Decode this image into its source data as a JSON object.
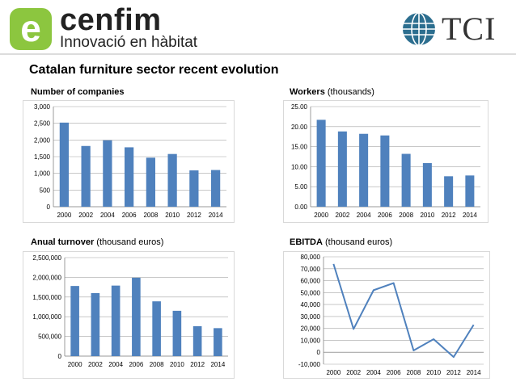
{
  "header": {
    "logo_left_letter": "e",
    "logo_left_name": "cenfim",
    "logo_left_tagline": "Innovació en hàbitat",
    "logo_right_name": "TCI",
    "logo_left_color": "#8cc63f",
    "globe_color": "#2c6e8f"
  },
  "page_title": "Catalan furniture sector recent evolution",
  "chart_data": [
    {
      "type": "bar",
      "title_bold": "Number of companies",
      "title_rest": "",
      "categories": [
        "2000",
        "2002",
        "2004",
        "2006",
        "2008",
        "2010",
        "2012",
        "2014"
      ],
      "values": [
        2520,
        1820,
        1990,
        1780,
        1470,
        1580,
        1090,
        1100
      ],
      "ylim": [
        0,
        3000
      ],
      "yticks": [
        "0",
        "500",
        "1,000",
        "1,500",
        "2,000",
        "2,500",
        "3,000"
      ],
      "grid": true,
      "color": "#4f81bd"
    },
    {
      "type": "bar",
      "title_bold": "Workers",
      "title_rest": " (thousands)",
      "categories": [
        "2000",
        "2002",
        "2004",
        "2006",
        "2008",
        "2010",
        "2012",
        "2014"
      ],
      "values": [
        21.7,
        18.8,
        18.2,
        17.8,
        13.2,
        10.9,
        7.6,
        7.8
      ],
      "ylim": [
        0,
        25
      ],
      "yticks": [
        "0.00",
        "5.00",
        "10.00",
        "15.00",
        "20.00",
        "25.00"
      ],
      "grid": true,
      "color": "#4f81bd"
    },
    {
      "type": "bar",
      "title_bold": "Anual turnover",
      "title_rest": " (thousand euros)",
      "categories": [
        "2000",
        "2002",
        "2004",
        "2006",
        "2008",
        "2010",
        "2012",
        "2014"
      ],
      "values": [
        1780000,
        1600000,
        1790000,
        1990000,
        1390000,
        1150000,
        760000,
        710000
      ],
      "ylim": [
        0,
        2500000
      ],
      "yticks": [
        "0",
        "500,000",
        "1,000,000",
        "1,500,000",
        "2,000,000",
        "2,500,000"
      ],
      "grid": true,
      "color": "#4f81bd"
    },
    {
      "type": "line",
      "title_bold": "EBITDA",
      "title_rest": " (thousand euros)",
      "categories": [
        "2000",
        "2002",
        "2004",
        "2006",
        "2008",
        "2010",
        "2012",
        "2014"
      ],
      "values": [
        74000,
        19500,
        52000,
        58000,
        1500,
        11000,
        -4000,
        23000
      ],
      "ylim": [
        -10000,
        80000
      ],
      "yticks": [
        "-10,000",
        "0",
        "10,000",
        "20,000",
        "30,000",
        "40,000",
        "50,000",
        "60,000",
        "70,000",
        "80,000"
      ],
      "grid": true,
      "color": "#4f81bd"
    }
  ]
}
